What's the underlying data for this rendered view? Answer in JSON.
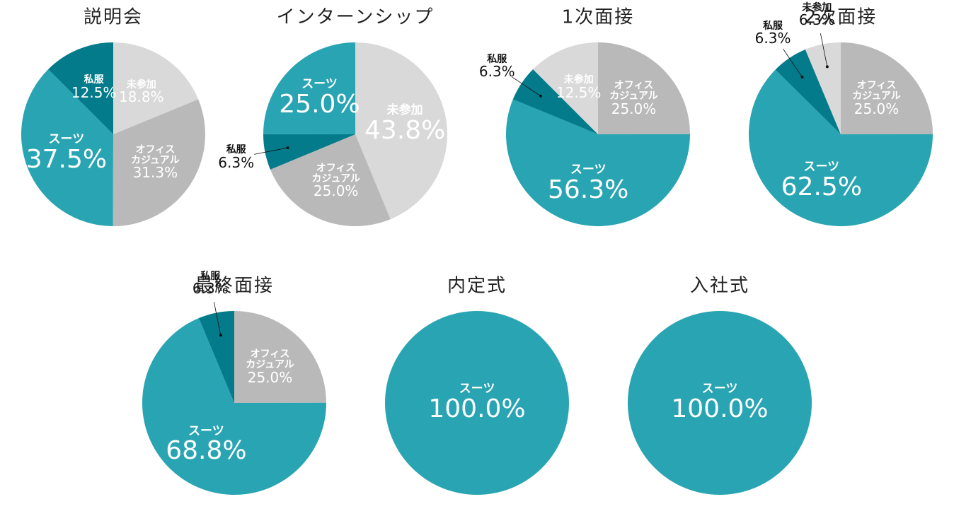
{
  "chart_data": [
    {
      "type": "pie",
      "title": "説明会",
      "categories": [
        "未参加",
        "オフィス\nカジュアル",
        "スーツ",
        "私服"
      ],
      "values": [
        18.8,
        31.3,
        37.5,
        12.5
      ],
      "value_labels": [
        "18.8%",
        "31.3%",
        "37.5%",
        "12.5%"
      ],
      "colors": [
        "#d9d9d9",
        "#b9b9b9",
        "#29a4b2",
        "#037b8a"
      ]
    },
    {
      "type": "pie",
      "title": "インターンシップ",
      "categories": [
        "未参加",
        "オフィス\nカジュアル",
        "私服",
        "スーツ"
      ],
      "values": [
        43.8,
        25.0,
        6.3,
        25.0
      ],
      "value_labels": [
        "43.8%",
        "25.0%",
        "6.3%",
        "25.0%"
      ],
      "colors": [
        "#d9d9d9",
        "#b9b9b9",
        "#037b8a",
        "#29a4b2"
      ]
    },
    {
      "type": "pie",
      "title": "1次面接",
      "categories": [
        "オフィス\nカジュアル",
        "スーツ",
        "私服",
        "未参加"
      ],
      "values": [
        25.0,
        56.3,
        6.3,
        12.5
      ],
      "value_labels": [
        "25.0%",
        "56.3%",
        "6.3%",
        "12.5%"
      ],
      "colors": [
        "#b9b9b9",
        "#29a4b2",
        "#037b8a",
        "#d9d9d9"
      ]
    },
    {
      "type": "pie",
      "title": "2次面接",
      "categories": [
        "オフィス\nカジュアル",
        "スーツ",
        "私服",
        "未参加"
      ],
      "values": [
        25.0,
        62.5,
        6.3,
        6.3
      ],
      "value_labels": [
        "25.0%",
        "62.5%",
        "6.3%",
        "6.3%"
      ],
      "colors": [
        "#b9b9b9",
        "#29a4b2",
        "#037b8a",
        "#d9d9d9"
      ]
    },
    {
      "type": "pie",
      "title": "最終面接",
      "categories": [
        "オフィス\nカジュアル",
        "スーツ",
        "私服"
      ],
      "values": [
        25.0,
        68.8,
        6.3
      ],
      "value_labels": [
        "25.0%",
        "68.8%",
        "6.3%"
      ],
      "colors": [
        "#b9b9b9",
        "#29a4b2",
        "#037b8a"
      ]
    },
    {
      "type": "pie",
      "title": "内定式",
      "categories": [
        "スーツ"
      ],
      "values": [
        100
      ],
      "value_labels": [
        "100.0%"
      ],
      "colors": [
        "#29a4b2"
      ]
    },
    {
      "type": "pie",
      "title": "入社式",
      "categories": [
        "スーツ"
      ],
      "values": [
        100
      ],
      "value_labels": [
        "100.0%"
      ],
      "colors": [
        "#29a4b2"
      ]
    }
  ]
}
